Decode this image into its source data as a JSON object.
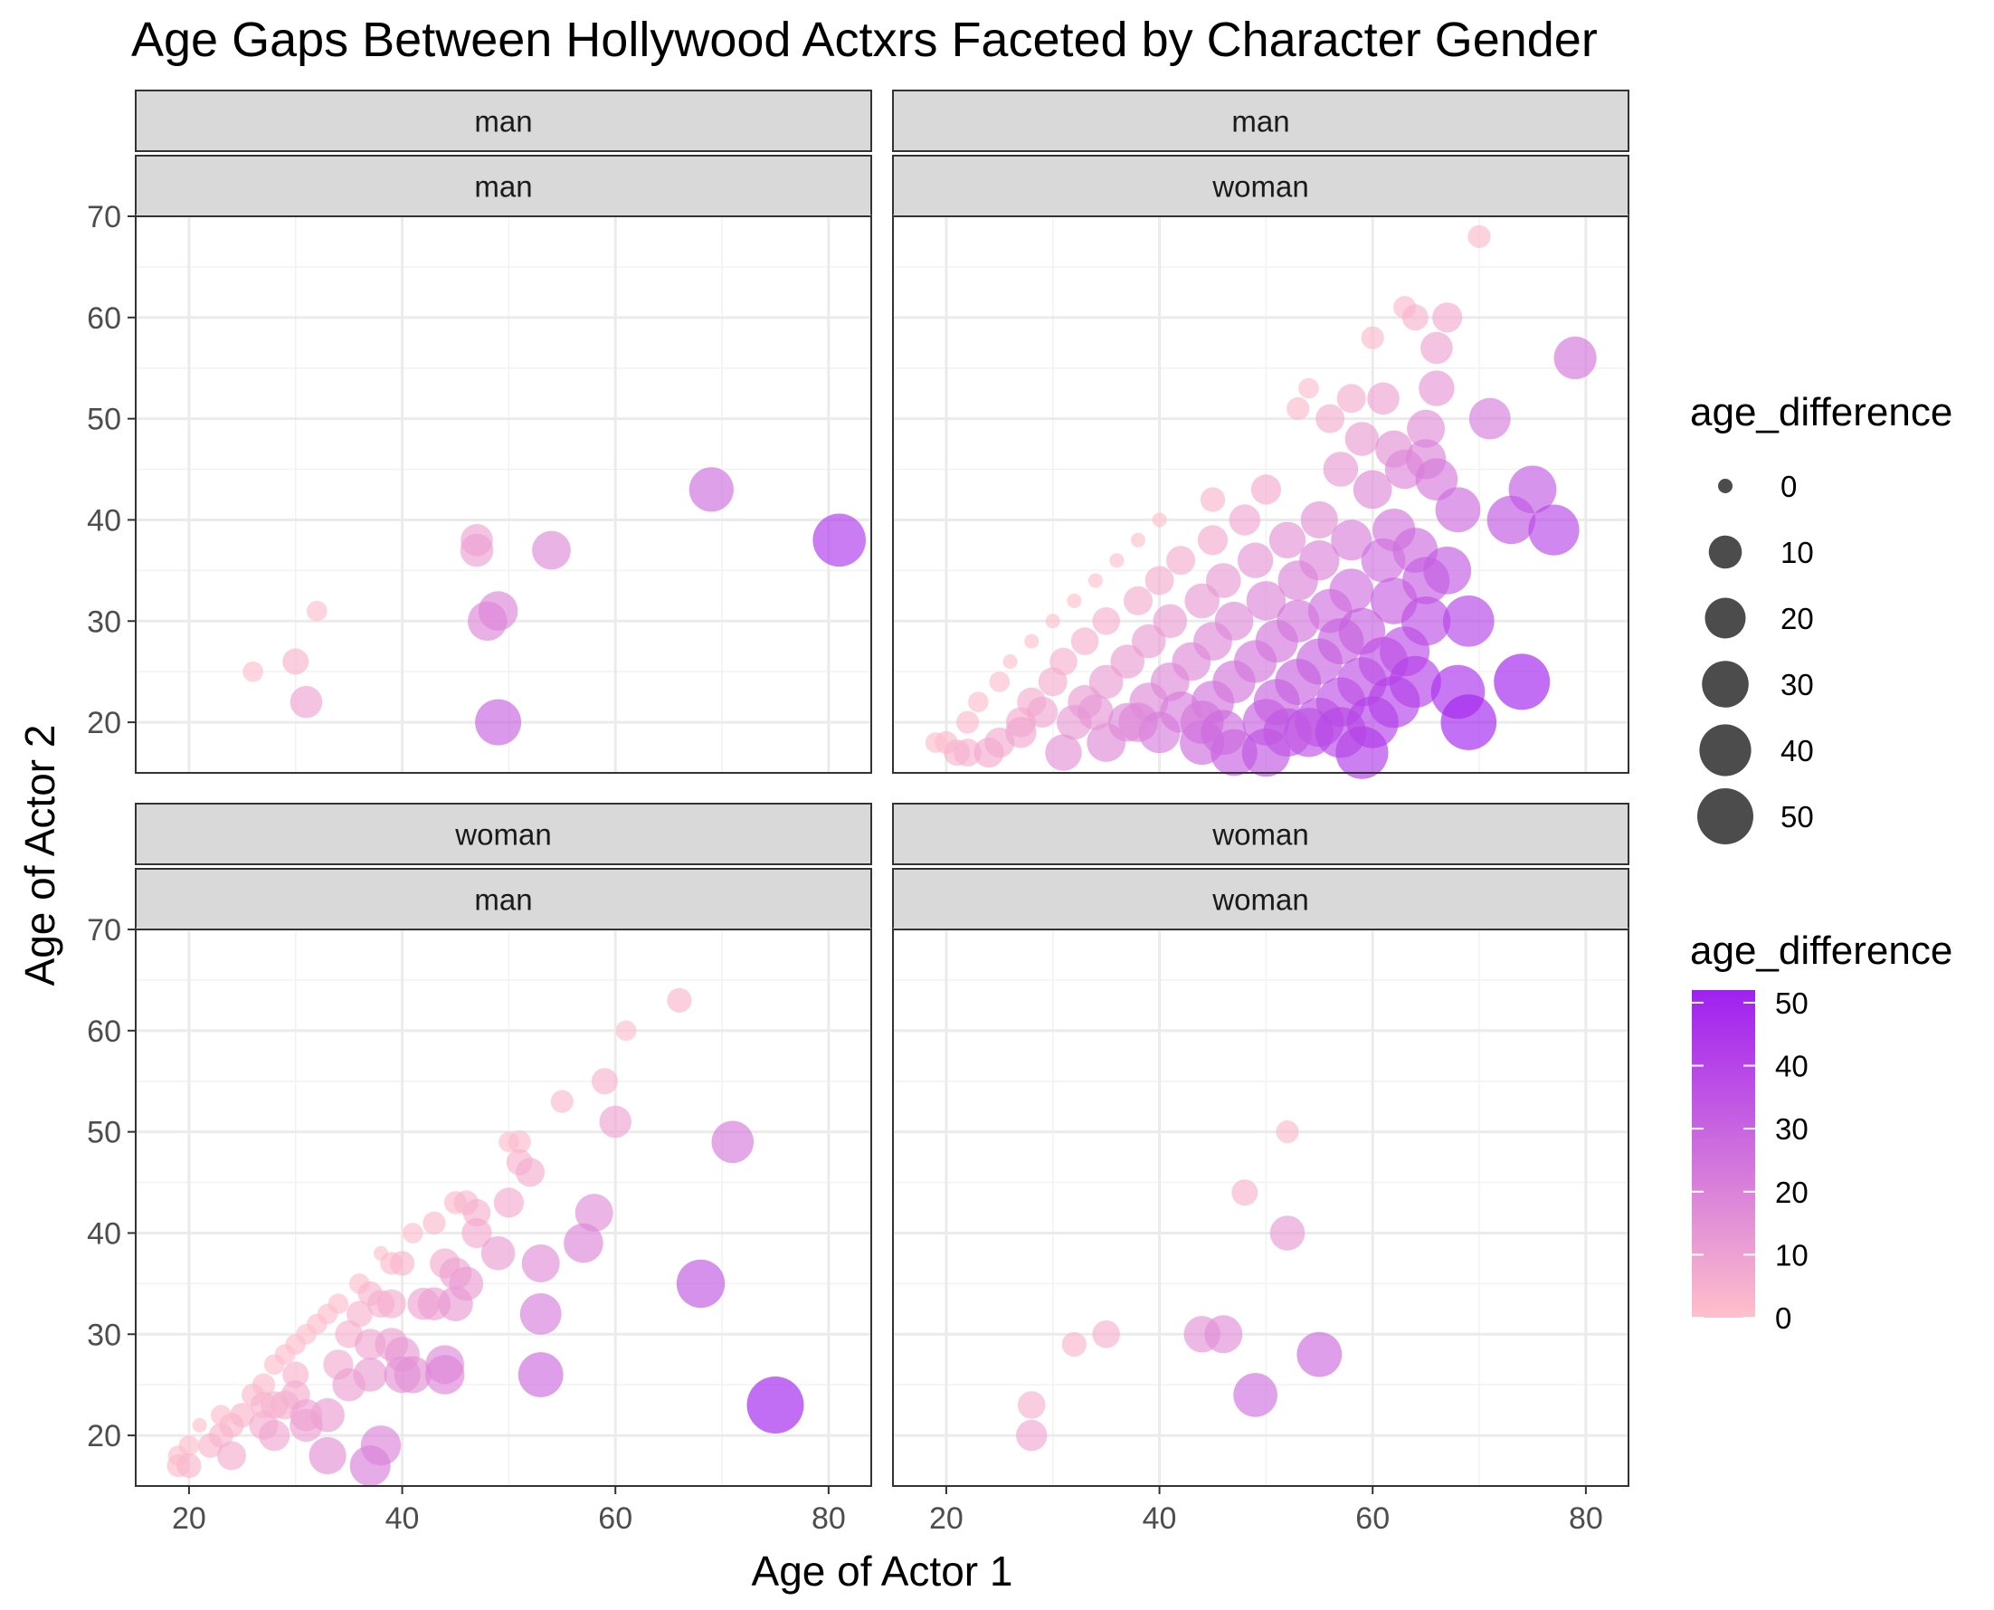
{
  "chart_data": {
    "type": "scatter",
    "title": "Age Gaps Between Hollywood Actxrs Faceted by Character Gender",
    "xlabel": "Age of Actor 1",
    "ylabel": "Age of Actor 2",
    "xlim": [
      15,
      84
    ],
    "ylim": [
      15,
      70
    ],
    "x_ticks": [
      20,
      40,
      60,
      80
    ],
    "y_ticks": [
      20,
      30,
      40,
      50,
      60,
      70
    ],
    "grid": true,
    "size_legend": {
      "title": "age_difference",
      "values": [
        0,
        10,
        20,
        30,
        40,
        50
      ]
    },
    "color_legend": {
      "title": "age_difference",
      "values": [
        0,
        10,
        20,
        30,
        40,
        50
      ],
      "low_color": "#ffc0cb",
      "high_color": "#a020f0"
    },
    "facets": [
      {
        "strip_top": "man",
        "strip_bottom": "man",
        "points": [
          [
            26,
            25
          ],
          [
            30,
            26
          ],
          [
            31,
            22
          ],
          [
            32,
            31
          ],
          [
            47,
            38
          ],
          [
            47,
            37
          ],
          [
            54,
            37
          ],
          [
            48,
            30
          ],
          [
            49,
            31
          ],
          [
            49,
            20
          ],
          [
            69,
            43
          ],
          [
            81,
            38
          ]
        ]
      },
      {
        "strip_top": "man",
        "strip_bottom": "woman",
        "points": [
          [
            70,
            68
          ],
          [
            63,
            61
          ],
          [
            64,
            60
          ],
          [
            67,
            60
          ],
          [
            60,
            58
          ],
          [
            66,
            57
          ],
          [
            79,
            56
          ],
          [
            54,
            53
          ],
          [
            66,
            53
          ],
          [
            58,
            52
          ],
          [
            61,
            52
          ],
          [
            53,
            51
          ],
          [
            56,
            50
          ],
          [
            71,
            50
          ],
          [
            65,
            49
          ],
          [
            59,
            48
          ],
          [
            62,
            47
          ],
          [
            65,
            46
          ],
          [
            63,
            45
          ],
          [
            66,
            44
          ],
          [
            57,
            45
          ],
          [
            75,
            43
          ],
          [
            50,
            43
          ],
          [
            60,
            43
          ],
          [
            45,
            42
          ],
          [
            68,
            41
          ],
          [
            73,
            40
          ],
          [
            77,
            39
          ],
          [
            40,
            40
          ],
          [
            48,
            40
          ],
          [
            55,
            40
          ],
          [
            62,
            39
          ],
          [
            38,
            38
          ],
          [
            45,
            38
          ],
          [
            52,
            38
          ],
          [
            58,
            38
          ],
          [
            64,
            37
          ],
          [
            67,
            35
          ],
          [
            36,
            36
          ],
          [
            42,
            36
          ],
          [
            49,
            36
          ],
          [
            55,
            36
          ],
          [
            61,
            36
          ],
          [
            34,
            34
          ],
          [
            40,
            34
          ],
          [
            46,
            34
          ],
          [
            53,
            34
          ],
          [
            58,
            33
          ],
          [
            65,
            34
          ],
          [
            32,
            32
          ],
          [
            38,
            32
          ],
          [
            44,
            32
          ],
          [
            50,
            32
          ],
          [
            56,
            31
          ],
          [
            62,
            32
          ],
          [
            30,
            30
          ],
          [
            35,
            30
          ],
          [
            41,
            30
          ],
          [
            47,
            30
          ],
          [
            53,
            30
          ],
          [
            59,
            29
          ],
          [
            65,
            30
          ],
          [
            69,
            30
          ],
          [
            28,
            28
          ],
          [
            33,
            28
          ],
          [
            39,
            28
          ],
          [
            45,
            28
          ],
          [
            51,
            28
          ],
          [
            57,
            28
          ],
          [
            63,
            27
          ],
          [
            26,
            26
          ],
          [
            31,
            26
          ],
          [
            37,
            26
          ],
          [
            43,
            26
          ],
          [
            49,
            26
          ],
          [
            55,
            26
          ],
          [
            61,
            26
          ],
          [
            25,
            24
          ],
          [
            30,
            24
          ],
          [
            35,
            24
          ],
          [
            41,
            24
          ],
          [
            47,
            24
          ],
          [
            53,
            24
          ],
          [
            59,
            24
          ],
          [
            64,
            24
          ],
          [
            74,
            24
          ],
          [
            23,
            22
          ],
          [
            28,
            22
          ],
          [
            33,
            22
          ],
          [
            39,
            22
          ],
          [
            45,
            22
          ],
          [
            51,
            22
          ],
          [
            57,
            22
          ],
          [
            62,
            22
          ],
          [
            68,
            23
          ],
          [
            22,
            20
          ],
          [
            27,
            20
          ],
          [
            32,
            20
          ],
          [
            38,
            20
          ],
          [
            44,
            20
          ],
          [
            50,
            20
          ],
          [
            55,
            20
          ],
          [
            60,
            20
          ],
          [
            69,
            20
          ],
          [
            20,
            18
          ],
          [
            25,
            18
          ],
          [
            31,
            17
          ],
          [
            35,
            18
          ],
          [
            40,
            19
          ],
          [
            44,
            18
          ],
          [
            47,
            17
          ],
          [
            50,
            17
          ],
          [
            54,
            19
          ],
          [
            59,
            17
          ],
          [
            19,
            18
          ],
          [
            21,
            17
          ],
          [
            22,
            17
          ],
          [
            24,
            17
          ],
          [
            27,
            19
          ],
          [
            29,
            21
          ],
          [
            34,
            21
          ],
          [
            37,
            20
          ],
          [
            42,
            21
          ],
          [
            46,
            19
          ],
          [
            52,
            19
          ],
          [
            57,
            19
          ]
        ]
      },
      {
        "strip_top": "woman",
        "strip_bottom": "man",
        "points": [
          [
            66,
            63
          ],
          [
            61,
            60
          ],
          [
            55,
            53
          ],
          [
            59,
            55
          ],
          [
            60,
            51
          ],
          [
            71,
            49
          ],
          [
            50,
            49
          ],
          [
            51,
            49
          ],
          [
            51,
            47
          ],
          [
            52,
            46
          ],
          [
            50,
            43
          ],
          [
            45,
            43
          ],
          [
            46,
            43
          ],
          [
            47,
            42
          ],
          [
            58,
            42
          ],
          [
            47,
            40
          ],
          [
            43,
            41
          ],
          [
            41,
            40
          ],
          [
            57,
            39
          ],
          [
            49,
            38
          ],
          [
            38,
            38
          ],
          [
            39,
            37
          ],
          [
            40,
            37
          ],
          [
            44,
            37
          ],
          [
            45,
            36
          ],
          [
            46,
            35
          ],
          [
            53,
            37
          ],
          [
            68,
            35
          ],
          [
            36,
            35
          ],
          [
            37,
            34
          ],
          [
            38,
            33
          ],
          [
            42,
            33
          ],
          [
            43,
            33
          ],
          [
            45,
            33
          ],
          [
            34,
            33
          ],
          [
            33,
            32
          ],
          [
            32,
            31
          ],
          [
            36,
            32
          ],
          [
            39,
            33
          ],
          [
            53,
            32
          ],
          [
            31,
            30
          ],
          [
            30,
            29
          ],
          [
            35,
            30
          ],
          [
            37,
            29
          ],
          [
            39,
            29
          ],
          [
            40,
            28
          ],
          [
            29,
            28
          ],
          [
            28,
            27
          ],
          [
            44,
            27
          ],
          [
            30,
            26
          ],
          [
            34,
            27
          ],
          [
            37,
            26
          ],
          [
            40,
            26
          ],
          [
            41,
            26
          ],
          [
            44,
            26
          ],
          [
            53,
            26
          ],
          [
            27,
            25
          ],
          [
            26,
            24
          ],
          [
            30,
            24
          ],
          [
            29,
            23
          ],
          [
            35,
            25
          ],
          [
            28,
            23
          ],
          [
            25,
            22
          ],
          [
            24,
            21
          ],
          [
            27,
            21
          ],
          [
            28,
            20
          ],
          [
            31,
            21
          ],
          [
            33,
            22
          ],
          [
            75,
            23
          ],
          [
            23,
            20
          ],
          [
            22,
            19
          ],
          [
            20,
            19
          ],
          [
            19,
            18
          ],
          [
            19,
            17
          ],
          [
            20,
            17
          ],
          [
            24,
            18
          ],
          [
            33,
            18
          ],
          [
            37,
            17
          ],
          [
            38,
            19
          ],
          [
            31,
            22
          ],
          [
            23,
            22
          ],
          [
            27,
            23
          ],
          [
            21,
            21
          ]
        ]
      },
      {
        "strip_top": "woman",
        "strip_bottom": "woman",
        "points": [
          [
            52,
            50
          ],
          [
            48,
            44
          ],
          [
            52,
            40
          ],
          [
            32,
            29
          ],
          [
            35,
            30
          ],
          [
            44,
            30
          ],
          [
            46,
            30
          ],
          [
            55,
            28
          ],
          [
            49,
            24
          ],
          [
            28,
            23
          ],
          [
            28,
            20
          ]
        ]
      }
    ]
  }
}
